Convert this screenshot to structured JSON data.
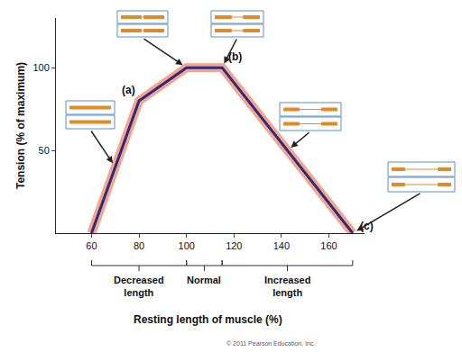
{
  "chart_data": {
    "type": "line",
    "x": [
      60,
      80,
      100,
      115,
      170
    ],
    "values": [
      0,
      80,
      100,
      100,
      0
    ],
    "color": "#2b2d7c",
    "xlim": [
      45,
      175
    ],
    "ylim": [
      0,
      130
    ],
    "xticks": [
      60,
      80,
      100,
      120,
      140,
      160
    ],
    "yticks": [
      50,
      100
    ],
    "x_label": "Resting length of muscle (%)",
    "y_label": "Tension (% of maximum)",
    "grid": false,
    "annotations": [
      {
        "text": "(a)",
        "x": 80,
        "y": 80
      },
      {
        "text": "(b)",
        "x": 115,
        "y": 100
      },
      {
        "text": "(c)",
        "x": 170,
        "y": 0
      }
    ],
    "regions": [
      {
        "label": "Decreased length",
        "from": 60,
        "to": 100
      },
      {
        "label": "Normal",
        "from": 100,
        "to": 115
      },
      {
        "label": "Increased length",
        "from": 115,
        "to": 170
      }
    ],
    "source": "© 2011 Pearson Education, Inc."
  }
}
